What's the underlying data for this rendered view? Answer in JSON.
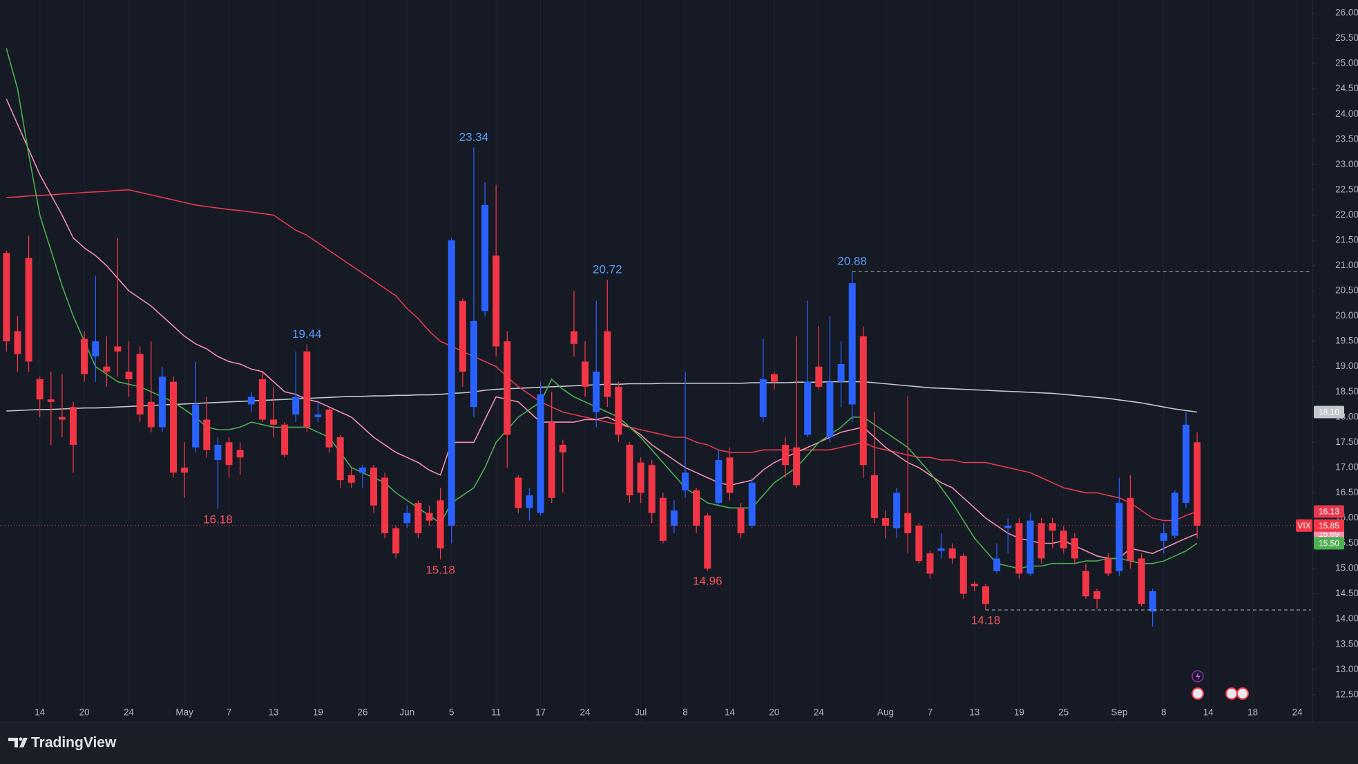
{
  "chart_data": {
    "type": "candlestick",
    "symbol": "VIX",
    "last_tag": "15.85",
    "up_color": "#2962ff",
    "down_color": "#f23645",
    "ylim": [
      11.95,
      26.26
    ],
    "yticks": [
      {
        "value": 12.5,
        "label": "12.50"
      },
      {
        "value": 13,
        "label": "13.00"
      },
      {
        "value": 13.5,
        "label": "13.50"
      },
      {
        "value": 14,
        "label": "14.00"
      },
      {
        "value": 14.5,
        "label": "14.50"
      },
      {
        "value": 15,
        "label": "15.00"
      },
      {
        "value": 15.5,
        "label": "15.50"
      },
      {
        "value": 16,
        "label": "16.00"
      },
      {
        "value": 16.5,
        "label": "16.50"
      },
      {
        "value": 17,
        "label": "17.00"
      },
      {
        "value": 17.5,
        "label": "17.50"
      },
      {
        "value": 18,
        "label": "18.00"
      },
      {
        "value": 18.5,
        "label": "18.50"
      },
      {
        "value": 19,
        "label": "19.00"
      },
      {
        "value": 19.5,
        "label": "19.50"
      },
      {
        "value": 20,
        "label": "20.00"
      },
      {
        "value": 20.5,
        "label": "20.50"
      },
      {
        "value": 21,
        "label": "21.00"
      },
      {
        "value": 21.5,
        "label": "21.50"
      },
      {
        "value": 22,
        "label": "22.00"
      },
      {
        "value": 22.5,
        "label": "22.50"
      },
      {
        "value": 23,
        "label": "23.00"
      },
      {
        "value": 23.5,
        "label": "23.50"
      },
      {
        "value": 24,
        "label": "24.00"
      },
      {
        "value": 24.5,
        "label": "24.50"
      },
      {
        "value": 25,
        "label": "25.00"
      },
      {
        "value": 25.5,
        "label": "25.50"
      },
      {
        "value": 26,
        "label": "26.00"
      }
    ],
    "grid": true,
    "categories": [
      null,
      null,
      null,
      "14",
      null,
      null,
      null,
      "20",
      null,
      null,
      null,
      "24",
      null,
      null,
      null,
      null,
      "May",
      null,
      null,
      null,
      "7",
      null,
      null,
      null,
      "13",
      null,
      null,
      null,
      "19",
      null,
      null,
      null,
      "26",
      null,
      null,
      null,
      "Jun",
      null,
      null,
      null,
      "5",
      null,
      null,
      null,
      "11",
      null,
      null,
      null,
      "17",
      null,
      null,
      null,
      "24",
      null,
      null,
      null,
      null,
      "Jul",
      null,
      null,
      null,
      "8",
      null,
      null,
      null,
      "14",
      null,
      null,
      null,
      "20",
      null,
      null,
      null,
      "24",
      null,
      null,
      null,
      null,
      null,
      "Aug",
      null,
      null,
      null,
      "7",
      null,
      null,
      null,
      "13",
      null,
      null,
      null,
      "19",
      null,
      null,
      null,
      "25",
      null,
      null,
      null,
      null,
      "Sep",
      null,
      null,
      null,
      "8",
      null,
      null,
      null,
      "14",
      null,
      null,
      null,
      "18",
      null,
      null,
      null,
      "24",
      null
    ],
    "open": [
      21.25,
      19.7,
      21.15,
      18.75,
      18.35,
      18.0,
      18.2,
      19.55,
      19.2,
      19.0,
      19.4,
      18.9,
      19.25,
      18.3,
      17.8,
      18.7,
      17.0,
      17.4,
      17.95,
      17.15,
      17.5,
      17.35,
      18.25,
      18.75,
      17.95,
      17.85,
      18.05,
      19.3,
      18.0,
      18.15,
      17.6,
      16.85,
      16.9,
      17.0,
      16.8,
      15.8,
      15.9,
      16.3,
      16.1,
      16.35,
      15.85,
      20.3,
      18.2,
      20.1,
      21.2,
      19.5,
      16.8,
      16.2,
      16.1,
      17.9,
      17.45,
      19.7,
      19.1,
      18.1,
      19.7,
      18.6,
      17.45,
      17.1,
      17.05,
      16.4,
      15.85,
      16.55,
      16.55,
      16.05,
      16.3,
      17.2,
      16.2,
      15.85,
      18.0,
      18.85,
      17.45,
      17.4,
      17.65,
      19.0,
      17.6,
      18.7,
      18.25,
      19.6,
      16.85,
      16.0,
      15.8,
      16.1,
      15.85,
      15.3,
      15.35,
      15.4,
      15.25,
      14.7,
      14.65,
      14.95,
      15.8,
      15.9,
      14.9,
      15.9,
      15.9,
      15.75,
      15.6,
      14.95,
      14.55,
      15.2,
      14.95,
      16.4,
      15.2,
      14.15,
      15.55,
      15.65,
      16.3,
      17.5,
      null,
      null,
      null,
      null,
      null,
      null,
      null,
      null,
      null,
      null
    ],
    "high": [
      21.3,
      20.0,
      21.6,
      18.8,
      18.9,
      18.85,
      18.3,
      19.7,
      20.8,
      19.6,
      21.55,
      19.5,
      19.4,
      19.5,
      19.0,
      18.8,
      17.5,
      19.1,
      18.4,
      17.6,
      17.6,
      17.5,
      18.5,
      18.9,
      18.6,
      17.9,
      19.3,
      19.44,
      18.3,
      18.2,
      17.65,
      17.0,
      17.05,
      17.05,
      16.9,
      15.85,
      16.25,
      16.35,
      16.25,
      16.6,
      21.55,
      20.35,
      23.34,
      22.65,
      22.6,
      19.7,
      16.85,
      16.6,
      18.7,
      18.5,
      17.55,
      20.5,
      19.5,
      20.3,
      20.72,
      18.7,
      17.5,
      17.2,
      17.15,
      16.5,
      16.35,
      18.9,
      16.6,
      16.1,
      17.35,
      17.4,
      16.3,
      16.8,
      19.55,
      18.9,
      17.6,
      19.6,
      20.3,
      19.8,
      20.0,
      19.5,
      20.88,
      19.8,
      18.1,
      16.15,
      16.6,
      18.4,
      15.9,
      15.35,
      15.7,
      15.5,
      15.3,
      14.75,
      14.7,
      15.5,
      16.0,
      16.0,
      16.1,
      16.0,
      16.0,
      15.85,
      15.7,
      15.1,
      14.6,
      15.3,
      16.8,
      16.85,
      15.3,
      14.6,
      15.9,
      16.55,
      18.1,
      17.7,
      null,
      null,
      null,
      null,
      null,
      null,
      null,
      null,
      null,
      null
    ],
    "low": [
      19.3,
      18.9,
      18.9,
      18.0,
      17.45,
      17.6,
      16.9,
      18.7,
      18.7,
      18.6,
      18.8,
      18.4,
      17.9,
      17.7,
      17.7,
      16.8,
      16.4,
      17.3,
      17.2,
      16.18,
      16.8,
      16.85,
      18.1,
      17.9,
      17.6,
      17.2,
      17.9,
      17.7,
      17.9,
      17.3,
      16.6,
      16.6,
      16.6,
      16.1,
      15.6,
      15.2,
      15.8,
      15.6,
      15.85,
      15.18,
      15.5,
      18.6,
      18.0,
      20.0,
      19.2,
      17.0,
      16.1,
      15.95,
      16.05,
      16.3,
      16.5,
      19.2,
      18.4,
      17.8,
      18.2,
      17.5,
      16.3,
      16.3,
      15.9,
      15.5,
      15.7,
      16.4,
      15.7,
      14.96,
      16.25,
      16.35,
      15.6,
      15.8,
      17.9,
      18.55,
      16.8,
      16.6,
      17.6,
      18.55,
      17.5,
      18.2,
      17.9,
      16.8,
      15.9,
      15.6,
      15.6,
      15.3,
      15.1,
      14.8,
      15.2,
      15.1,
      14.4,
      14.55,
      14.18,
      14.9,
      15.3,
      14.8,
      14.85,
      15.1,
      15.4,
      15.3,
      15.1,
      14.4,
      14.2,
      14.85,
      14.85,
      15.0,
      14.25,
      13.85,
      15.3,
      15.6,
      16.2,
      15.6,
      null,
      null,
      null,
      null,
      null,
      null,
      null,
      null,
      null,
      null
    ],
    "close": [
      19.5,
      19.25,
      19.1,
      18.35,
      18.3,
      17.95,
      17.45,
      18.85,
      19.5,
      18.9,
      19.3,
      18.75,
      18.05,
      17.8,
      18.8,
      16.9,
      16.9,
      18.25,
      17.35,
      17.45,
      17.05,
      17.2,
      18.4,
      17.95,
      17.85,
      17.25,
      18.4,
      17.8,
      18.05,
      17.4,
      16.75,
      16.7,
      17.0,
      16.25,
      15.7,
      15.3,
      16.1,
      15.7,
      15.95,
      15.4,
      21.5,
      18.9,
      19.9,
      22.2,
      19.4,
      17.65,
      16.2,
      16.45,
      18.45,
      16.4,
      17.3,
      19.45,
      18.6,
      18.9,
      18.4,
      17.65,
      16.45,
      16.5,
      16.1,
      15.55,
      16.15,
      16.9,
      15.85,
      15.0,
      17.15,
      16.5,
      15.7,
      16.7,
      18.75,
      18.7,
      17.05,
      16.65,
      18.7,
      18.6,
      18.7,
      19.05,
      20.65,
      17.05,
      16.0,
      15.85,
      16.5,
      15.7,
      15.15,
      14.9,
      15.4,
      15.2,
      14.5,
      14.65,
      14.3,
      15.2,
      15.85,
      14.9,
      15.95,
      15.2,
      15.75,
      15.4,
      15.2,
      14.45,
      14.4,
      14.9,
      16.3,
      15.15,
      14.3,
      14.55,
      15.7,
      16.5,
      17.85,
      15.85,
      null,
      null,
      null,
      null,
      null,
      null,
      null,
      null,
      null,
      null
    ],
    "series": [
      {
        "color": "#c5c7cc",
        "tag": "18.10",
        "values": [
          18.12,
          18.13,
          18.14,
          18.15,
          18.15,
          18.16,
          18.17,
          18.18,
          18.18,
          18.19,
          18.2,
          18.21,
          18.22,
          18.23,
          18.24,
          18.25,
          18.26,
          18.27,
          18.28,
          18.29,
          18.3,
          18.31,
          18.32,
          18.33,
          18.34,
          18.35,
          18.36,
          18.37,
          18.38,
          18.39,
          18.4,
          18.41,
          18.41,
          18.42,
          18.42,
          18.43,
          18.43,
          18.44,
          18.44,
          18.45,
          18.47,
          18.48,
          18.5,
          18.53,
          18.55,
          18.56,
          18.57,
          18.58,
          18.59,
          18.6,
          18.61,
          18.62,
          18.63,
          18.64,
          18.65,
          18.65,
          18.66,
          18.66,
          18.66,
          18.67,
          18.67,
          18.67,
          18.67,
          18.67,
          18.67,
          18.67,
          18.67,
          18.68,
          18.68,
          18.68,
          18.68,
          18.69,
          18.69,
          18.69,
          18.7,
          18.7,
          18.7,
          18.7,
          18.68,
          18.66,
          18.64,
          18.62,
          18.6,
          18.58,
          18.57,
          18.56,
          18.55,
          18.54,
          18.53,
          18.52,
          18.51,
          18.5,
          18.49,
          18.48,
          18.47,
          18.45,
          18.43,
          18.41,
          18.39,
          18.37,
          18.34,
          18.31,
          18.28,
          18.24,
          18.2,
          18.16,
          18.13,
          18.1,
          null,
          null,
          null,
          null,
          null,
          null,
          null,
          null,
          null,
          null
        ]
      },
      {
        "color": "#e53950",
        "tag": "16.13",
        "values": [
          22.35,
          22.36,
          22.38,
          22.39,
          22.4,
          22.42,
          22.43,
          22.45,
          22.46,
          22.47,
          22.49,
          22.5,
          22.45,
          22.4,
          22.35,
          22.3,
          22.25,
          22.2,
          22.17,
          22.14,
          22.11,
          22.09,
          22.06,
          22.03,
          22.0,
          21.85,
          21.7,
          21.6,
          21.45,
          21.3,
          21.15,
          21.0,
          20.85,
          20.7,
          20.55,
          20.4,
          20.15,
          19.95,
          19.7,
          19.5,
          19.4,
          19.3,
          19.2,
          19.1,
          19.0,
          18.8,
          18.6,
          18.45,
          18.3,
          18.2,
          18.1,
          18.05,
          18.0,
          17.95,
          17.9,
          17.85,
          17.8,
          17.75,
          17.7,
          17.65,
          17.6,
          17.6,
          17.5,
          17.45,
          17.35,
          17.3,
          17.3,
          17.3,
          17.35,
          17.35,
          17.35,
          17.35,
          17.35,
          17.35,
          17.35,
          17.4,
          17.45,
          17.5,
          17.4,
          17.35,
          17.3,
          17.25,
          17.2,
          17.2,
          17.15,
          17.15,
          17.1,
          17.1,
          17.1,
          17.05,
          17.0,
          16.95,
          16.9,
          16.8,
          16.7,
          16.6,
          16.55,
          16.5,
          16.5,
          16.45,
          16.4,
          16.3,
          16.15,
          16.0,
          15.95,
          15.95,
          16.05,
          16.13,
          null,
          null,
          null,
          null,
          null,
          null,
          null,
          null,
          null,
          null
        ]
      },
      {
        "color": "#f48fb1",
        "tag": "15.69",
        "values": [
          24.3,
          23.8,
          23.3,
          22.8,
          22.4,
          22.0,
          21.55,
          21.35,
          21.2,
          21.0,
          20.75,
          20.5,
          20.35,
          20.2,
          20.0,
          19.8,
          19.6,
          19.45,
          19.35,
          19.2,
          19.1,
          19.05,
          18.95,
          18.9,
          18.7,
          18.5,
          18.45,
          18.35,
          18.3,
          18.2,
          18.1,
          18.0,
          17.8,
          17.6,
          17.45,
          17.3,
          17.2,
          17.1,
          16.95,
          16.85,
          17.5,
          17.5,
          17.5,
          17.95,
          18.4,
          18.35,
          18.3,
          18.1,
          17.9,
          17.9,
          17.9,
          17.9,
          17.95,
          17.95,
          18.0,
          17.9,
          17.8,
          17.65,
          17.45,
          17.3,
          17.15,
          17.0,
          16.9,
          16.8,
          16.7,
          16.65,
          16.7,
          16.75,
          16.95,
          17.1,
          17.2,
          17.3,
          17.4,
          17.5,
          17.6,
          17.7,
          17.75,
          17.8,
          17.6,
          17.4,
          17.25,
          17.1,
          17.0,
          16.85,
          16.7,
          16.6,
          16.4,
          16.2,
          16.0,
          15.85,
          15.7,
          15.6,
          15.55,
          15.5,
          15.5,
          15.55,
          15.45,
          15.35,
          15.25,
          15.2,
          15.2,
          15.4,
          15.35,
          15.3,
          15.4,
          15.5,
          15.6,
          15.69,
          null,
          null,
          null,
          null,
          null,
          null,
          null,
          null,
          null,
          null
        ]
      },
      {
        "color": "#4caf50",
        "tag": "15.50",
        "values": [
          25.3,
          24.5,
          23.2,
          22.0,
          21.3,
          20.6,
          20.0,
          19.5,
          19.0,
          18.85,
          18.7,
          18.65,
          18.6,
          18.5,
          18.4,
          18.3,
          18.15,
          18.0,
          17.8,
          17.75,
          17.75,
          17.8,
          17.9,
          17.85,
          17.8,
          17.8,
          17.8,
          17.8,
          17.7,
          17.6,
          17.3,
          17.0,
          16.9,
          16.8,
          16.7,
          16.5,
          16.35,
          16.2,
          16.05,
          15.9,
          16.3,
          16.45,
          16.6,
          17.0,
          17.5,
          17.75,
          18.0,
          18.15,
          18.3,
          18.75,
          18.55,
          18.4,
          18.3,
          18.2,
          18.1,
          18.0,
          17.8,
          17.6,
          17.35,
          17.1,
          16.85,
          16.6,
          16.45,
          16.3,
          16.25,
          16.2,
          16.2,
          16.2,
          16.45,
          16.7,
          16.85,
          17.0,
          17.25,
          17.5,
          17.65,
          17.8,
          18.0,
          18.0,
          17.85,
          17.7,
          17.55,
          17.4,
          17.15,
          16.9,
          16.6,
          16.3,
          15.95,
          15.6,
          15.35,
          15.1,
          15.05,
          15.0,
          15.05,
          15.05,
          15.1,
          15.1,
          15.1,
          15.15,
          15.15,
          15.2,
          15.2,
          15.15,
          15.1,
          15.1,
          15.15,
          15.25,
          15.35,
          15.5,
          null,
          null,
          null,
          null,
          null,
          null,
          null,
          null,
          null,
          null
        ]
      }
    ],
    "annotations": [
      {
        "x": 42,
        "y": 23.34,
        "position": "above",
        "color": "#5b9cf6"
      },
      {
        "x": 54,
        "y": 20.72,
        "position": "above",
        "color": "#5b9cf6"
      },
      {
        "x": 76,
        "y": 20.88,
        "position": "above",
        "color": "#5b9cf6",
        "line": true
      },
      {
        "x": 27,
        "y": 19.44,
        "position": "above",
        "color": "#5b9cf6"
      },
      {
        "x": 19,
        "y": 16.18,
        "position": "below",
        "color": "#f7525f"
      },
      {
        "x": 39,
        "y": 15.18,
        "position": "below",
        "color": "#f7525f"
      },
      {
        "x": 63,
        "y": 14.96,
        "position": "below",
        "color": "#f7525f"
      },
      {
        "x": 88,
        "y": 14.18,
        "position": "below",
        "color": "#f7525f",
        "line": true
      }
    ]
  },
  "branding": "TradingView"
}
